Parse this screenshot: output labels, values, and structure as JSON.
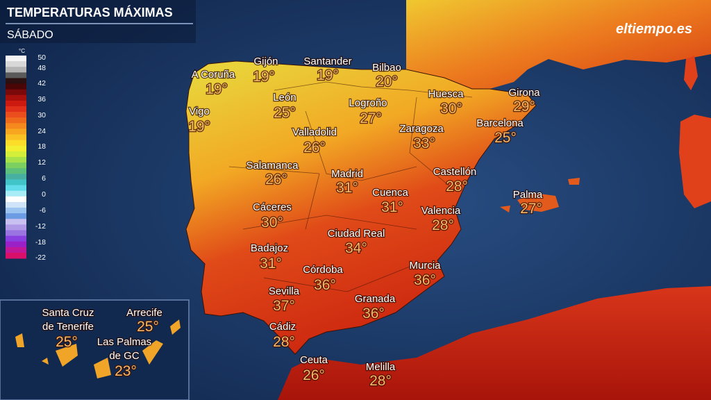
{
  "header": {
    "title": "TEMPERATURAS MÁXIMAS",
    "subtitle": "SÁBADO"
  },
  "logo": "eltiempo.es",
  "legend": {
    "unit": "°C",
    "labels": [
      50,
      48,
      42,
      36,
      30,
      24,
      18,
      12,
      6,
      0,
      -6,
      -12,
      -18,
      -22
    ],
    "colors": [
      "#f4f4f4",
      "#d8d8d8",
      "#b4b4b4",
      "#5a5a5a",
      "#2a1010",
      "#4a0606",
      "#7a0a0a",
      "#a8100c",
      "#cc1a10",
      "#e0301a",
      "#ea4e1c",
      "#f06a1c",
      "#f5891e",
      "#f8a620",
      "#fac224",
      "#fbdd2a",
      "#f2ef30",
      "#d4ef3a",
      "#a8e24a",
      "#7cd060",
      "#5cbf7a",
      "#48b0a0",
      "#40c4c8",
      "#60dcea",
      "#a8ecf8",
      "#ffffff",
      "#cfe4f8",
      "#9cc4f0",
      "#6c9ce4",
      "#c8c0f0",
      "#b09ae8",
      "#9a74e0",
      "#8a40e0",
      "#9a20c8",
      "#c01898",
      "#d8106a"
    ]
  },
  "cities": [
    {
      "name": "A Coruña",
      "temp": "19°"
    },
    {
      "name": "Gijón",
      "temp": "19°"
    },
    {
      "name": "Santander",
      "temp": "19°"
    },
    {
      "name": "Bilbao",
      "temp": "20°"
    },
    {
      "name": "León",
      "temp": "25°"
    },
    {
      "name": "Vigo",
      "temp": "19°"
    },
    {
      "name": "Huesca",
      "temp": "30°"
    },
    {
      "name": "Girona",
      "temp": "29°"
    },
    {
      "name": "Logroño",
      "temp": "27°"
    },
    {
      "name": "Valladolid",
      "temp": "26°"
    },
    {
      "name": "Zaragoza",
      "temp": "33°"
    },
    {
      "name": "Barcelona",
      "temp": "25°"
    },
    {
      "name": "Salamanca",
      "temp": "26°"
    },
    {
      "name": "Madrid",
      "temp": "31°"
    },
    {
      "name": "Castellón",
      "temp": "28°"
    },
    {
      "name": "Cuenca",
      "temp": "31°"
    },
    {
      "name": "Palma",
      "temp": "27°"
    },
    {
      "name": "Cáceres",
      "temp": "30°"
    },
    {
      "name": "Valencia",
      "temp": "28°"
    },
    {
      "name": "Ciudad Real",
      "temp": "34°"
    },
    {
      "name": "Badajoz",
      "temp": "31°"
    },
    {
      "name": "Córdoba",
      "temp": "36°"
    },
    {
      "name": "Murcia",
      "temp": "36°"
    },
    {
      "name": "Sevilla",
      "temp": "37°"
    },
    {
      "name": "Granada",
      "temp": "36°"
    },
    {
      "name": "Cádiz",
      "temp": "28°"
    },
    {
      "name": "Ceuta",
      "temp": "26°"
    },
    {
      "name": "Melilla",
      "temp": "28°"
    },
    {
      "name": [
        "Santa Cruz",
        "de Tenerife"
      ],
      "temp": "25°"
    },
    {
      "name": "Arrecife",
      "temp": "25°"
    },
    {
      "name": [
        "Las Palmas",
        "de GC"
      ],
      "temp": "23°"
    }
  ]
}
